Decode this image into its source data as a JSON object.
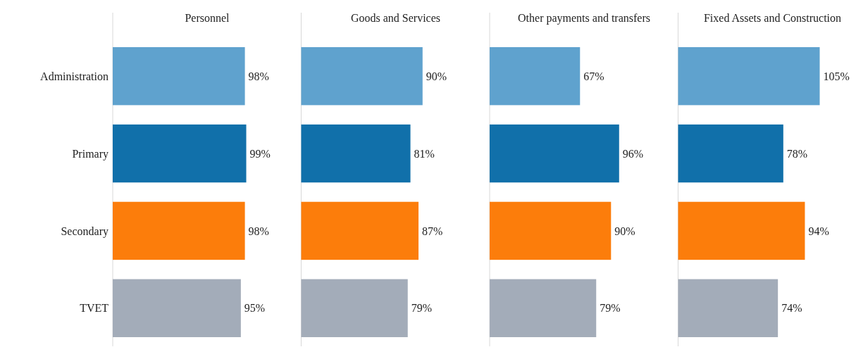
{
  "chart_data": [
    {
      "type": "bar",
      "orientation": "horizontal",
      "title": "Personnel",
      "categories": [
        "Administration",
        "Primary",
        "Secondary",
        "TVET"
      ],
      "values": [
        98,
        99,
        98,
        95
      ],
      "value_labels": [
        "98%",
        "99%",
        "98%",
        "95%"
      ],
      "colors": [
        "#5fa2ce",
        "#1170aa",
        "#fc7d0b",
        "#a3acb9"
      ],
      "tick_labels": "y"
    },
    {
      "type": "bar",
      "orientation": "horizontal",
      "title": "Goods and Services",
      "categories": [
        null,
        null,
        null,
        null
      ],
      "values": [
        90,
        81,
        87,
        79
      ],
      "value_labels": [
        "90%",
        "81%",
        "87%",
        "79%"
      ],
      "colors": [
        "#5fa2ce",
        "#1170aa",
        "#fc7d0b",
        "#a3acb9"
      ],
      "tick_labels": false
    },
    {
      "type": "bar",
      "orientation": "horizontal",
      "title": "Other payments and transfers",
      "categories": [
        null,
        null,
        null,
        null
      ],
      "values": [
        67,
        96,
        90,
        79
      ],
      "value_labels": [
        "67%",
        "96%",
        "90%",
        "79%"
      ],
      "colors": [
        "#5fa2ce",
        "#1170aa",
        "#fc7d0b",
        "#a3acb9"
      ],
      "tick_labels": false
    },
    {
      "type": "bar",
      "orientation": "horizontal",
      "title": "Fixed Assets and Construction",
      "categories": [
        null,
        null,
        null,
        null
      ],
      "values": [
        105,
        78,
        94,
        74
      ],
      "value_labels": [
        "105%",
        "78%",
        "94%",
        "74%"
      ],
      "colors": [
        "#5fa2ce",
        "#1170aa",
        "#fc7d0b",
        "#a3acb9"
      ],
      "tick_labels": false
    }
  ]
}
